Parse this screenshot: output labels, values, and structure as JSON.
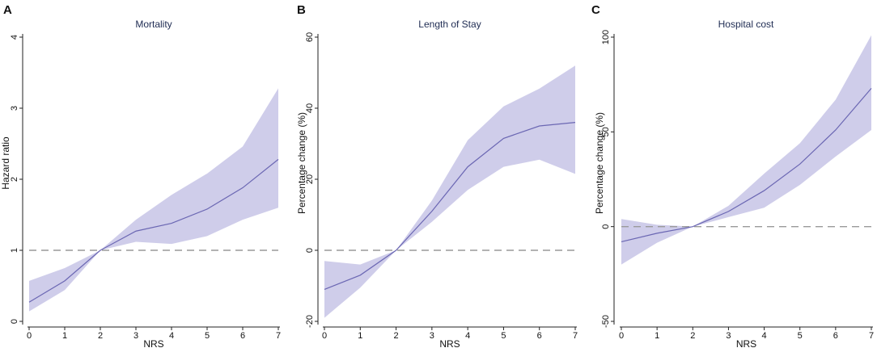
{
  "figure": {
    "panels": [
      {
        "letter": "A",
        "title": "Mortality"
      },
      {
        "letter": "B",
        "title": "Length of Stay"
      },
      {
        "letter": "C",
        "title": "Hospital cost"
      }
    ]
  },
  "colors": {
    "band": "#cfcdea",
    "line": "#6b67b3",
    "reference": "#9a9a9a",
    "axis": "#222222",
    "title": "#1e2b52"
  },
  "chart_data": [
    {
      "type": "line",
      "panel": "A",
      "title": "Mortality",
      "xlabel": "NRS",
      "ylabel": "Hazard ratio",
      "x": [
        0,
        1,
        2,
        3,
        4,
        5,
        6,
        7
      ],
      "xticks": [
        "0",
        "1",
        "2",
        "3",
        "4",
        "5",
        "6",
        "7"
      ],
      "ylim": [
        0,
        4
      ],
      "yticks": [
        "0",
        "1",
        "2",
        "3",
        "4"
      ],
      "reference_line": 1,
      "series": [
        {
          "name": "estimate",
          "values": [
            0.27,
            0.57,
            1.0,
            1.27,
            1.38,
            1.58,
            1.88,
            2.28
          ]
        },
        {
          "name": "lower",
          "values": [
            0.14,
            0.44,
            1.0,
            1.12,
            1.09,
            1.2,
            1.43,
            1.6
          ]
        },
        {
          "name": "upper",
          "values": [
            0.57,
            0.75,
            1.0,
            1.43,
            1.78,
            2.08,
            2.46,
            3.28
          ]
        }
      ]
    },
    {
      "type": "line",
      "panel": "B",
      "title": "Length of Stay",
      "xlabel": "NRS",
      "ylabel": "Percentage change (%)",
      "x": [
        0,
        1,
        2,
        3,
        4,
        5,
        6,
        7
      ],
      "xticks": [
        "0",
        "1",
        "2",
        "3",
        "4",
        "5",
        "6",
        "7"
      ],
      "ylim": [
        -20,
        60
      ],
      "yticks": [
        "-20",
        "0",
        "20",
        "40",
        "60"
      ],
      "reference_line": 0,
      "series": [
        {
          "name": "estimate",
          "values": [
            -11,
            -7,
            0,
            11,
            23.5,
            31.5,
            35,
            36
          ]
        },
        {
          "name": "lower",
          "values": [
            -19,
            -10.5,
            0,
            8,
            17,
            23.5,
            25.5,
            21.5
          ]
        },
        {
          "name": "upper",
          "values": [
            -3,
            -4,
            0,
            14,
            31,
            40.5,
            45.5,
            52
          ]
        }
      ]
    },
    {
      "type": "line",
      "panel": "C",
      "title": "Hospital cost",
      "xlabel": "NRS",
      "ylabel": "Percentage change (%)",
      "x": [
        0,
        1,
        2,
        3,
        4,
        5,
        6,
        7
      ],
      "xticks": [
        "0",
        "1",
        "2",
        "3",
        "4",
        "5",
        "6",
        "7"
      ],
      "ylim": [
        -50,
        100
      ],
      "yticks": [
        "-50",
        "0",
        "50",
        "100"
      ],
      "reference_line": 0,
      "series": [
        {
          "name": "estimate",
          "values": [
            -8,
            -3.5,
            0,
            8,
            19,
            33,
            51,
            73
          ]
        },
        {
          "name": "lower",
          "values": [
            -20,
            -8.5,
            0,
            5,
            10,
            22,
            37,
            51
          ]
        },
        {
          "name": "upper",
          "values": [
            4,
            1,
            0,
            11,
            28,
            44,
            67,
            101
          ]
        }
      ]
    }
  ]
}
